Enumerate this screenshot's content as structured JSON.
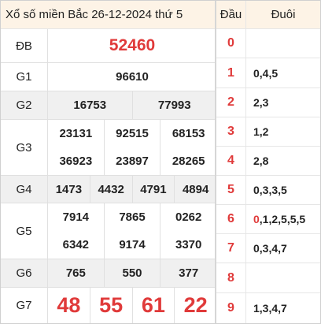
{
  "title": "Xổ số miền Bắc 26-12-2024 thứ 5",
  "side_headers": {
    "head": "Đầu",
    "tail": "Đuôi"
  },
  "prizes": {
    "db": {
      "label": "ĐB",
      "values": [
        "52460"
      ]
    },
    "g1": {
      "label": "G1",
      "values": [
        "96610"
      ]
    },
    "g2": {
      "label": "G2",
      "values": [
        "16753",
        "77993"
      ]
    },
    "g3": {
      "label": "G3",
      "values": [
        "23131",
        "92515",
        "68153",
        "36923",
        "23897",
        "28265"
      ]
    },
    "g4": {
      "label": "G4",
      "values": [
        "1473",
        "4432",
        "4791",
        "4894"
      ]
    },
    "g5": {
      "label": "G5",
      "values": [
        "7914",
        "7865",
        "0262",
        "6342",
        "9174",
        "3370"
      ]
    },
    "g6": {
      "label": "G6",
      "values": [
        "765",
        "550",
        "377"
      ]
    },
    "g7": {
      "label": "G7",
      "values": [
        "48",
        "55",
        "61",
        "22"
      ]
    }
  },
  "loto": [
    {
      "head": "0",
      "tail_first": "",
      "tail_rest": ""
    },
    {
      "head": "1",
      "tail_first": "",
      "tail_rest": "0,4,5"
    },
    {
      "head": "2",
      "tail_first": "",
      "tail_rest": "2,3"
    },
    {
      "head": "3",
      "tail_first": "",
      "tail_rest": "1,2"
    },
    {
      "head": "4",
      "tail_first": "",
      "tail_rest": "2,8"
    },
    {
      "head": "5",
      "tail_first": "",
      "tail_rest": "0,3,3,5"
    },
    {
      "head": "6",
      "tail_first": "0",
      "tail_rest": ",1,2,5,5,5"
    },
    {
      "head": "7",
      "tail_first": "",
      "tail_rest": "0,3,4,7"
    },
    {
      "head": "8",
      "tail_first": "",
      "tail_rest": ""
    },
    {
      "head": "9",
      "tail_first": "",
      "tail_rest": "1,3,4,7"
    }
  ],
  "colors": {
    "accent_red": "#e03a3a",
    "header_bg": "#fdf3e6",
    "row_gray": "#f0f0f0"
  }
}
